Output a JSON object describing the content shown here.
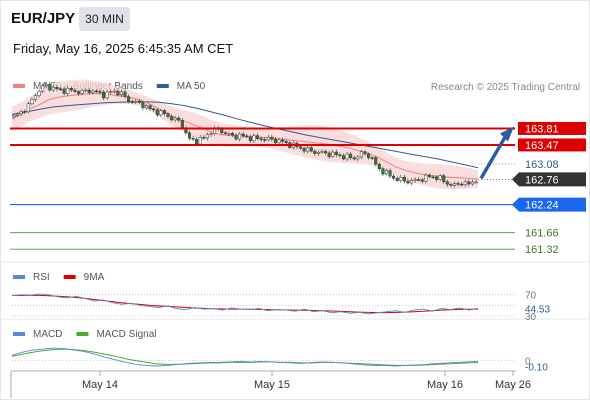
{
  "header": {
    "pair": "EUR/JPY",
    "timeframe": "30 MIN",
    "datetime": "Friday, May 16, 2025 6:45:35 AM CET"
  },
  "colors": {
    "ma20": "#f08080",
    "bollinger_fill": "#f9d4d4",
    "ma50": "#2e5b9a",
    "resistance": "#dd0000",
    "support_blue": "#1a66ee",
    "support_green": "#3a9a3a",
    "current_tag": "#333333",
    "arrow": "#2d5c9e",
    "rsi": "#5b86d6",
    "rsi_ma": "#dd0000",
    "macd": "#5b86d6",
    "macd_signal": "#4aaa2a",
    "candle_up": "#ffffff",
    "candle_down": "#2e7d32"
  },
  "chart_data": [
    {
      "type": "candlestick",
      "legend": [
        {
          "name": "MA 20 + Bollinger Bands",
          "color": "#f08080"
        },
        {
          "name": "MA 50",
          "color": "#2e5b9a"
        }
      ],
      "credit": "Research © 2025 Trading Central",
      "ylim": [
        161.2,
        164.5
      ],
      "x_ticks": [
        "May 14",
        "May 15",
        "May 16",
        "May 26"
      ],
      "levels": [
        {
          "value": 163.81,
          "label": "163.81",
          "style": "resistance"
        },
        {
          "value": 163.47,
          "label": "163.47",
          "style": "resistance"
        },
        {
          "value": 163.08,
          "label": "163.08",
          "style": "plain"
        },
        {
          "value": 162.76,
          "label": "162.76",
          "style": "current"
        },
        {
          "value": 162.24,
          "label": "162.24",
          "style": "support_blue"
        },
        {
          "value": 161.66,
          "label": "161.66",
          "style": "support_green"
        },
        {
          "value": 161.32,
          "label": "161.32",
          "style": "support_green"
        }
      ],
      "close_path": [
        164.05,
        164.15,
        164.3,
        164.55,
        164.7,
        164.65,
        164.6,
        164.6,
        164.58,
        164.56,
        164.6,
        164.55,
        164.5,
        164.58,
        164.55,
        164.4,
        164.35,
        164.3,
        164.2,
        164.15,
        164.1,
        164.0,
        163.95,
        163.6,
        163.55,
        163.6,
        163.75,
        163.8,
        163.7,
        163.65,
        163.66,
        163.62,
        163.6,
        163.6,
        163.58,
        163.55,
        163.5,
        163.45,
        163.4,
        163.35,
        163.32,
        163.3,
        163.28,
        163.25,
        163.22,
        163.2,
        163.3,
        163.25,
        163.0,
        162.9,
        162.8,
        162.75,
        162.72,
        162.73,
        162.78,
        162.82,
        162.8,
        162.7,
        162.62,
        162.7,
        162.65,
        162.76
      ],
      "ma20_path": [
        164.02,
        164.1,
        164.22,
        164.3,
        164.4,
        164.45,
        164.48,
        164.5,
        164.52,
        164.53,
        164.52,
        164.5,
        164.48,
        164.45,
        164.4,
        164.32,
        164.22,
        164.12,
        164.02,
        163.95,
        163.88,
        163.8,
        163.72,
        163.68,
        163.66,
        163.65,
        163.64,
        163.63,
        163.62,
        163.6,
        163.58,
        163.56,
        163.54,
        163.52,
        163.5,
        163.47,
        163.44,
        163.4,
        163.35,
        163.3,
        163.22,
        163.12,
        163.02,
        162.95,
        162.9,
        162.86,
        162.84,
        162.82,
        162.8,
        162.79,
        162.78,
        162.77
      ],
      "ma50_path": [
        164.1,
        164.15,
        164.2,
        164.25,
        164.28,
        164.3,
        164.32,
        164.34,
        164.35,
        164.36,
        164.36,
        164.35,
        164.32,
        164.28,
        164.22,
        164.15,
        164.08,
        164.0,
        163.93,
        163.86,
        163.8,
        163.74,
        163.68,
        163.63,
        163.58,
        163.53,
        163.48,
        163.43,
        163.38,
        163.33,
        163.28,
        163.23,
        163.18,
        163.12,
        163.06,
        163.0
      ],
      "target_arrow": {
        "from": 162.78,
        "to": 163.81
      }
    },
    {
      "type": "line",
      "legend": [
        {
          "name": "RSI",
          "color": "#5b86d6"
        },
        {
          "name": "9MA",
          "color": "#dd0000"
        }
      ],
      "ylim": [
        30,
        75
      ],
      "levels": [
        {
          "value": 70,
          "label": "70"
        },
        {
          "value": 44.53,
          "label": "44.53"
        },
        {
          "value": 30,
          "label": "30"
        }
      ],
      "rsi": [
        68,
        70,
        69,
        71,
        70,
        66,
        64,
        67,
        63,
        58,
        60,
        55,
        52,
        54,
        50,
        48,
        46,
        49,
        44,
        42,
        46,
        43,
        44,
        41,
        45,
        43,
        42,
        44,
        40,
        42,
        41,
        39,
        43,
        38,
        40,
        36,
        38,
        35,
        37,
        34,
        36,
        38,
        40,
        37,
        41,
        43,
        39,
        44,
        42,
        45,
        41,
        44.53
      ],
      "ma9": [
        68,
        69,
        69,
        69,
        68,
        67,
        66,
        65,
        63,
        61,
        59,
        57,
        55,
        53,
        52,
        50,
        49,
        48,
        47,
        46,
        45,
        44,
        44,
        43,
        43,
        43,
        43,
        42,
        42,
        42,
        41,
        41,
        41,
        40,
        40,
        39,
        39,
        38,
        37,
        37,
        36,
        36,
        37,
        37,
        38,
        39,
        40,
        41,
        42,
        42,
        43,
        43
      ]
    },
    {
      "type": "line",
      "legend": [
        {
          "name": "MACD",
          "color": "#5b86d6"
        },
        {
          "name": "MACD Signal",
          "color": "#4aaa2a"
        }
      ],
      "ylim": [
        -0.15,
        0.3
      ],
      "levels": [
        {
          "value": 0,
          "label": "0"
        },
        {
          "value": -0.1,
          "label": "-0.10"
        }
      ],
      "macd": [
        0.1,
        0.16,
        0.2,
        0.22,
        0.24,
        0.23,
        0.2,
        0.17,
        0.12,
        0.06,
        0.01,
        -0.04,
        -0.08,
        -0.1,
        -0.11,
        -0.1,
        -0.08,
        -0.06,
        -0.05,
        -0.04,
        -0.04,
        -0.03,
        -0.02,
        -0.03,
        -0.02,
        -0.03,
        -0.04,
        -0.05,
        -0.06,
        -0.04,
        -0.03,
        -0.04,
        -0.05,
        -0.07,
        -0.09,
        -0.1,
        -0.1,
        -0.11,
        -0.1,
        -0.09,
        -0.08,
        -0.06,
        -0.05,
        -0.04,
        -0.03,
        -0.02
      ],
      "signal": [
        0.08,
        0.12,
        0.16,
        0.19,
        0.21,
        0.22,
        0.21,
        0.19,
        0.16,
        0.12,
        0.08,
        0.03,
        -0.01,
        -0.04,
        -0.07,
        -0.08,
        -0.08,
        -0.07,
        -0.06,
        -0.05,
        -0.05,
        -0.04,
        -0.04,
        -0.04,
        -0.03,
        -0.03,
        -0.04,
        -0.04,
        -0.05,
        -0.05,
        -0.04,
        -0.04,
        -0.05,
        -0.06,
        -0.07,
        -0.08,
        -0.09,
        -0.1,
        -0.1,
        -0.1,
        -0.09,
        -0.08,
        -0.07,
        -0.06,
        -0.05,
        -0.04
      ]
    }
  ]
}
